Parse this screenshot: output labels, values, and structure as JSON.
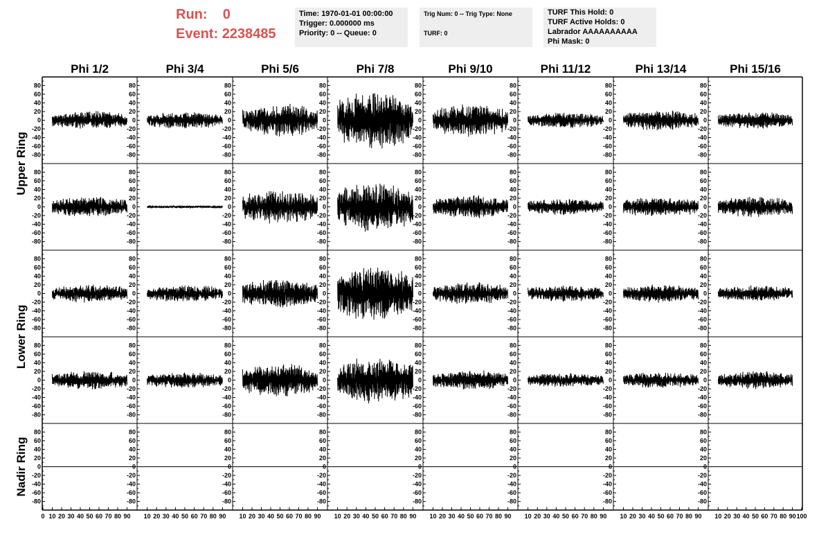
{
  "header": {
    "run_label": "Run:",
    "run_value": "0",
    "event_label": "Event:",
    "event_value": "2238485",
    "accent_color": "#d9534f"
  },
  "info_boxes": [
    {
      "lines": [
        "Time: 1970-01-01 00:00:00",
        "Trigger: 0.000000 ms",
        "Priority: 0 -- Queue: 0"
      ]
    },
    {
      "lines": [
        "Trig Num: 0 -- Trig Type: None",
        "",
        "TURF: 0"
      ]
    },
    {
      "lines": [
        "TURF This Hold: 0",
        "TURF Active Holds: 0",
        "Labrador AAAAAAAAAA",
        "Phi Mask: 0"
      ]
    }
  ],
  "grid": {
    "column_titles": [
      "Phi 1/2",
      "Phi 3/4",
      "Phi 5/6",
      "Phi 7/8",
      "Phi 9/10",
      "Phi 11/12",
      "Phi 13/14",
      "Phi 15/16"
    ],
    "ring_labels": [
      "Upper Ring",
      "Lower Ring",
      "Nadir Ring"
    ]
  },
  "chart_data": {
    "type": "line",
    "title": "",
    "xlabel": "",
    "ylabel": "",
    "xlim": [
      0,
      100
    ],
    "ylim": [
      -95,
      95
    ],
    "y_ticks": [
      80,
      60,
      40,
      20,
      0,
      -20,
      -40,
      -60,
      -80
    ],
    "x_ticks": [
      0,
      10,
      20,
      30,
      40,
      50,
      60,
      70,
      80,
      90,
      100
    ],
    "x_tick_labels": [
      "0",
      "10",
      "20",
      "30",
      "40",
      "50",
      "60",
      "70",
      "80",
      "90",
      "100"
    ],
    "samples_per_trace": 260,
    "rows": [
      {
        "ring": "Upper Ring",
        "amplitudes": [
          14,
          13,
          25,
          45,
          25,
          12,
          16,
          13
        ]
      },
      {
        "ring": "Upper Ring",
        "amplitudes": [
          16,
          2,
          26,
          38,
          18,
          13,
          15,
          16
        ]
      },
      {
        "ring": "Lower Ring",
        "amplitudes": [
          14,
          13,
          22,
          42,
          17,
          13,
          14,
          12
        ]
      },
      {
        "ring": "Lower Ring",
        "amplitudes": [
          14,
          12,
          26,
          36,
          15,
          11,
          12,
          14
        ]
      },
      {
        "ring": "Nadir Ring",
        "amplitudes": [
          0,
          0,
          0,
          0,
          0,
          0,
          0,
          0
        ]
      }
    ]
  }
}
